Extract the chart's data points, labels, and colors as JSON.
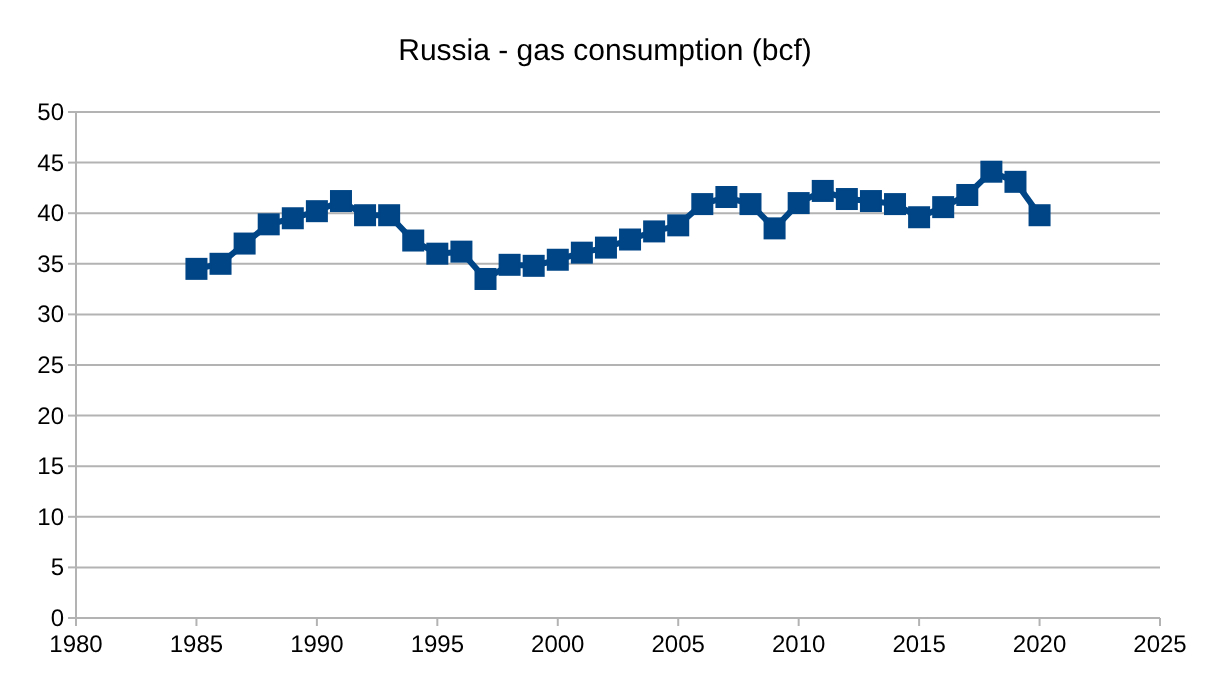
{
  "chart_data": {
    "type": "line",
    "title": "Russia - gas consumption (bcf)",
    "x": [
      1985,
      1986,
      1987,
      1988,
      1989,
      1990,
      1991,
      1992,
      1993,
      1994,
      1995,
      1996,
      1997,
      1998,
      1999,
      2000,
      2001,
      2002,
      2003,
      2004,
      2005,
      2006,
      2007,
      2008,
      2009,
      2010,
      2011,
      2012,
      2013,
      2014,
      2015,
      2016,
      2017,
      2018,
      2019,
      2020
    ],
    "series": [
      {
        "color": "#004586",
        "values": [
          34.5,
          35,
          37,
          38.9,
          39.5,
          40.2,
          41.2,
          39.8,
          39.8,
          37.3,
          36,
          36.2,
          33.5,
          34.9,
          34.8,
          35.4,
          36.1,
          36.6,
          37.4,
          38.2,
          38.8,
          40.9,
          41.6,
          40.9,
          38.5,
          41,
          42.2,
          41.4,
          41.2,
          40.9,
          39.6,
          40.6,
          41.8,
          44.1,
          43.1,
          39.8
        ]
      }
    ],
    "xlim": [
      1980,
      2025
    ],
    "xticks": [
      1980,
      1985,
      1990,
      1995,
      2000,
      2005,
      2010,
      2015,
      2020,
      2025
    ],
    "ylim": [
      0,
      50
    ],
    "yticks": [
      0,
      5,
      10,
      15,
      20,
      25,
      30,
      35,
      40,
      45,
      50
    ],
    "grid": "y",
    "marker": "square",
    "line_style": "solid"
  }
}
